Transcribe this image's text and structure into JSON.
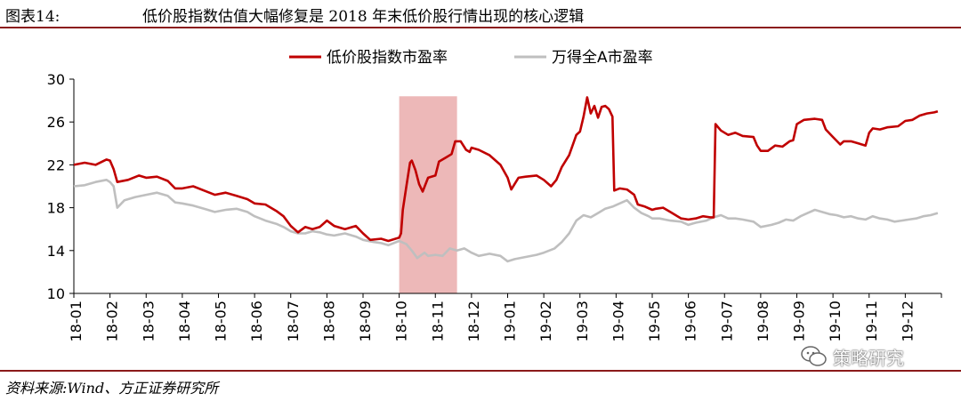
{
  "header": {
    "figure_label": "图表14:",
    "title": "低价股指数估值大幅修复是 2018 年末低价股行情出现的核心逻辑"
  },
  "footer": {
    "source": "资料来源:Wind、方正证券研究所"
  },
  "watermark": {
    "text": "策略研究",
    "icon": "wechat-icon"
  },
  "colors": {
    "series_low_price": "#c00000",
    "series_wind_a": "#bfbfbf",
    "highlight": "#e8a6a6",
    "rule": "#8b1a1a"
  },
  "chart_data": {
    "type": "line",
    "title": "",
    "xlabel": "",
    "ylabel": "",
    "ylim": [
      10,
      30
    ],
    "yticks": [
      10,
      14,
      18,
      22,
      26,
      30
    ],
    "categories": [
      "18-01",
      "18-02",
      "18-03",
      "18-04",
      "18-05",
      "18-06",
      "18-07",
      "18-08",
      "18-09",
      "18-10",
      "18-11",
      "18-12",
      "19-01",
      "19-02",
      "19-03",
      "19-04",
      "19-05",
      "19-06",
      "19-07",
      "19-08",
      "19-09",
      "19-10",
      "19-11",
      "19-12"
    ],
    "legend": {
      "position": "top"
    },
    "highlight_range": {
      "from_month": 9.0,
      "to_month": 10.6,
      "label": ""
    },
    "series": [
      {
        "name": "低价股指数市盈率",
        "color": "#c00000",
        "points": [
          [
            0.0,
            22.0
          ],
          [
            0.3,
            22.2
          ],
          [
            0.6,
            22.0
          ],
          [
            0.9,
            22.5
          ],
          [
            1.0,
            22.4
          ],
          [
            1.1,
            21.6
          ],
          [
            1.2,
            20.4
          ],
          [
            1.5,
            20.6
          ],
          [
            1.8,
            21.0
          ],
          [
            2.0,
            20.8
          ],
          [
            2.3,
            20.9
          ],
          [
            2.6,
            20.5
          ],
          [
            2.8,
            19.8
          ],
          [
            3.0,
            19.8
          ],
          [
            3.3,
            20.0
          ],
          [
            3.6,
            19.6
          ],
          [
            3.9,
            19.2
          ],
          [
            4.2,
            19.4
          ],
          [
            4.5,
            19.1
          ],
          [
            4.8,
            18.8
          ],
          [
            5.0,
            18.4
          ],
          [
            5.3,
            18.3
          ],
          [
            5.6,
            17.7
          ],
          [
            5.8,
            17.2
          ],
          [
            6.0,
            16.3
          ],
          [
            6.2,
            15.7
          ],
          [
            6.4,
            16.2
          ],
          [
            6.6,
            16.0
          ],
          [
            6.8,
            16.2
          ],
          [
            7.0,
            16.8
          ],
          [
            7.2,
            16.3
          ],
          [
            7.5,
            16.0
          ],
          [
            7.8,
            16.3
          ],
          [
            8.0,
            15.6
          ],
          [
            8.2,
            15.0
          ],
          [
            8.5,
            15.1
          ],
          [
            8.7,
            14.9
          ],
          [
            9.0,
            15.2
          ],
          [
            9.05,
            15.6
          ],
          [
            9.1,
            17.8
          ],
          [
            9.2,
            20.0
          ],
          [
            9.3,
            22.2
          ],
          [
            9.35,
            22.4
          ],
          [
            9.45,
            21.5
          ],
          [
            9.55,
            20.2
          ],
          [
            9.65,
            19.5
          ],
          [
            9.8,
            20.8
          ],
          [
            10.0,
            21.0
          ],
          [
            10.1,
            22.3
          ],
          [
            10.3,
            22.7
          ],
          [
            10.45,
            23.0
          ],
          [
            10.55,
            24.2
          ],
          [
            10.7,
            24.2
          ],
          [
            10.85,
            23.4
          ],
          [
            10.95,
            23.2
          ],
          [
            11.0,
            23.6
          ],
          [
            11.2,
            23.4
          ],
          [
            11.5,
            22.9
          ],
          [
            11.8,
            22.0
          ],
          [
            12.0,
            20.8
          ],
          [
            12.1,
            19.7
          ],
          [
            12.3,
            20.8
          ],
          [
            12.5,
            20.9
          ],
          [
            12.8,
            21.0
          ],
          [
            13.0,
            20.6
          ],
          [
            13.2,
            20.0
          ],
          [
            13.35,
            20.6
          ],
          [
            13.5,
            21.8
          ],
          [
            13.7,
            22.9
          ],
          [
            13.9,
            24.8
          ],
          [
            14.0,
            25.1
          ],
          [
            14.1,
            26.5
          ],
          [
            14.2,
            28.3
          ],
          [
            14.3,
            26.8
          ],
          [
            14.4,
            27.5
          ],
          [
            14.5,
            26.4
          ],
          [
            14.6,
            27.4
          ],
          [
            14.7,
            27.5
          ],
          [
            14.8,
            27.2
          ],
          [
            14.9,
            26.5
          ],
          [
            14.95,
            19.6
          ],
          [
            15.1,
            19.8
          ],
          [
            15.3,
            19.7
          ],
          [
            15.5,
            19.2
          ],
          [
            15.6,
            18.3
          ],
          [
            15.8,
            18.1
          ],
          [
            16.0,
            17.8
          ],
          [
            16.1,
            17.9
          ],
          [
            16.3,
            18.0
          ],
          [
            16.5,
            17.6
          ],
          [
            16.8,
            17.0
          ],
          [
            17.0,
            16.9
          ],
          [
            17.2,
            17.0
          ],
          [
            17.4,
            17.2
          ],
          [
            17.6,
            17.1
          ],
          [
            17.7,
            17.1
          ],
          [
            17.75,
            25.8
          ],
          [
            17.9,
            25.2
          ],
          [
            18.1,
            24.8
          ],
          [
            18.3,
            25.0
          ],
          [
            18.5,
            24.7
          ],
          [
            18.8,
            24.6
          ],
          [
            18.9,
            23.8
          ],
          [
            19.0,
            23.3
          ],
          [
            19.2,
            23.3
          ],
          [
            19.4,
            23.8
          ],
          [
            19.6,
            23.7
          ],
          [
            19.8,
            24.2
          ],
          [
            19.9,
            24.3
          ],
          [
            20.0,
            25.8
          ],
          [
            20.2,
            26.2
          ],
          [
            20.5,
            26.3
          ],
          [
            20.7,
            26.2
          ],
          [
            20.8,
            25.3
          ],
          [
            21.0,
            24.6
          ],
          [
            21.2,
            23.9
          ],
          [
            21.3,
            24.2
          ],
          [
            21.5,
            24.2
          ],
          [
            21.7,
            24.0
          ],
          [
            21.8,
            23.9
          ],
          [
            21.9,
            23.8
          ],
          [
            22.0,
            25.0
          ],
          [
            22.1,
            25.4
          ],
          [
            22.3,
            25.3
          ],
          [
            22.5,
            25.5
          ],
          [
            22.8,
            25.6
          ],
          [
            23.0,
            26.1
          ],
          [
            23.2,
            26.2
          ],
          [
            23.4,
            26.6
          ],
          [
            23.6,
            26.8
          ],
          [
            23.8,
            26.9
          ],
          [
            23.9,
            27.0
          ]
        ]
      },
      {
        "name": "万得全A市盈率",
        "color": "#bfbfbf",
        "points": [
          [
            0.0,
            20.0
          ],
          [
            0.3,
            20.1
          ],
          [
            0.6,
            20.4
          ],
          [
            0.9,
            20.6
          ],
          [
            1.0,
            20.4
          ],
          [
            1.1,
            20.0
          ],
          [
            1.2,
            18.0
          ],
          [
            1.4,
            18.7
          ],
          [
            1.7,
            19.0
          ],
          [
            2.0,
            19.2
          ],
          [
            2.3,
            19.4
          ],
          [
            2.6,
            19.1
          ],
          [
            2.8,
            18.5
          ],
          [
            3.0,
            18.4
          ],
          [
            3.3,
            18.2
          ],
          [
            3.6,
            17.9
          ],
          [
            3.9,
            17.6
          ],
          [
            4.2,
            17.8
          ],
          [
            4.5,
            17.9
          ],
          [
            4.8,
            17.6
          ],
          [
            5.0,
            17.2
          ],
          [
            5.3,
            16.8
          ],
          [
            5.6,
            16.5
          ],
          [
            5.8,
            16.2
          ],
          [
            6.0,
            15.8
          ],
          [
            6.2,
            15.6
          ],
          [
            6.4,
            15.6
          ],
          [
            6.6,
            15.8
          ],
          [
            6.8,
            15.7
          ],
          [
            7.0,
            15.5
          ],
          [
            7.2,
            15.4
          ],
          [
            7.5,
            15.6
          ],
          [
            7.8,
            15.3
          ],
          [
            8.0,
            15.0
          ],
          [
            8.3,
            14.8
          ],
          [
            8.5,
            14.7
          ],
          [
            8.7,
            14.5
          ],
          [
            9.0,
            14.9
          ],
          [
            9.2,
            14.6
          ],
          [
            9.35,
            14.0
          ],
          [
            9.5,
            13.3
          ],
          [
            9.7,
            13.8
          ],
          [
            9.8,
            13.5
          ],
          [
            10.0,
            13.6
          ],
          [
            10.2,
            13.5
          ],
          [
            10.4,
            14.2
          ],
          [
            10.6,
            14.0
          ],
          [
            10.8,
            14.2
          ],
          [
            11.0,
            13.8
          ],
          [
            11.2,
            13.5
          ],
          [
            11.5,
            13.7
          ],
          [
            11.8,
            13.5
          ],
          [
            12.0,
            13.0
          ],
          [
            12.2,
            13.2
          ],
          [
            12.5,
            13.4
          ],
          [
            12.8,
            13.6
          ],
          [
            13.0,
            13.8
          ],
          [
            13.3,
            14.2
          ],
          [
            13.5,
            14.8
          ],
          [
            13.7,
            15.6
          ],
          [
            13.9,
            16.8
          ],
          [
            14.1,
            17.3
          ],
          [
            14.3,
            17.1
          ],
          [
            14.5,
            17.5
          ],
          [
            14.7,
            17.9
          ],
          [
            14.9,
            18.1
          ],
          [
            15.1,
            18.4
          ],
          [
            15.3,
            18.7
          ],
          [
            15.5,
            18.0
          ],
          [
            15.7,
            17.5
          ],
          [
            15.9,
            17.2
          ],
          [
            16.0,
            17.0
          ],
          [
            16.2,
            17.0
          ],
          [
            16.5,
            16.8
          ],
          [
            16.8,
            16.7
          ],
          [
            17.0,
            16.4
          ],
          [
            17.2,
            16.6
          ],
          [
            17.5,
            16.8
          ],
          [
            17.7,
            17.1
          ],
          [
            17.9,
            17.3
          ],
          [
            18.1,
            17.0
          ],
          [
            18.3,
            17.0
          ],
          [
            18.5,
            16.9
          ],
          [
            18.8,
            16.7
          ],
          [
            19.0,
            16.2
          ],
          [
            19.3,
            16.4
          ],
          [
            19.5,
            16.6
          ],
          [
            19.7,
            16.9
          ],
          [
            19.9,
            16.8
          ],
          [
            20.1,
            17.2
          ],
          [
            20.3,
            17.5
          ],
          [
            20.5,
            17.8
          ],
          [
            20.7,
            17.6
          ],
          [
            20.9,
            17.4
          ],
          [
            21.1,
            17.3
          ],
          [
            21.3,
            17.1
          ],
          [
            21.5,
            17.2
          ],
          [
            21.7,
            17.0
          ],
          [
            21.9,
            16.9
          ],
          [
            22.1,
            17.2
          ],
          [
            22.3,
            17.0
          ],
          [
            22.5,
            16.9
          ],
          [
            22.7,
            16.7
          ],
          [
            22.9,
            16.8
          ],
          [
            23.1,
            16.9
          ],
          [
            23.3,
            17.0
          ],
          [
            23.5,
            17.2
          ],
          [
            23.7,
            17.3
          ],
          [
            23.9,
            17.5
          ]
        ]
      }
    ]
  }
}
